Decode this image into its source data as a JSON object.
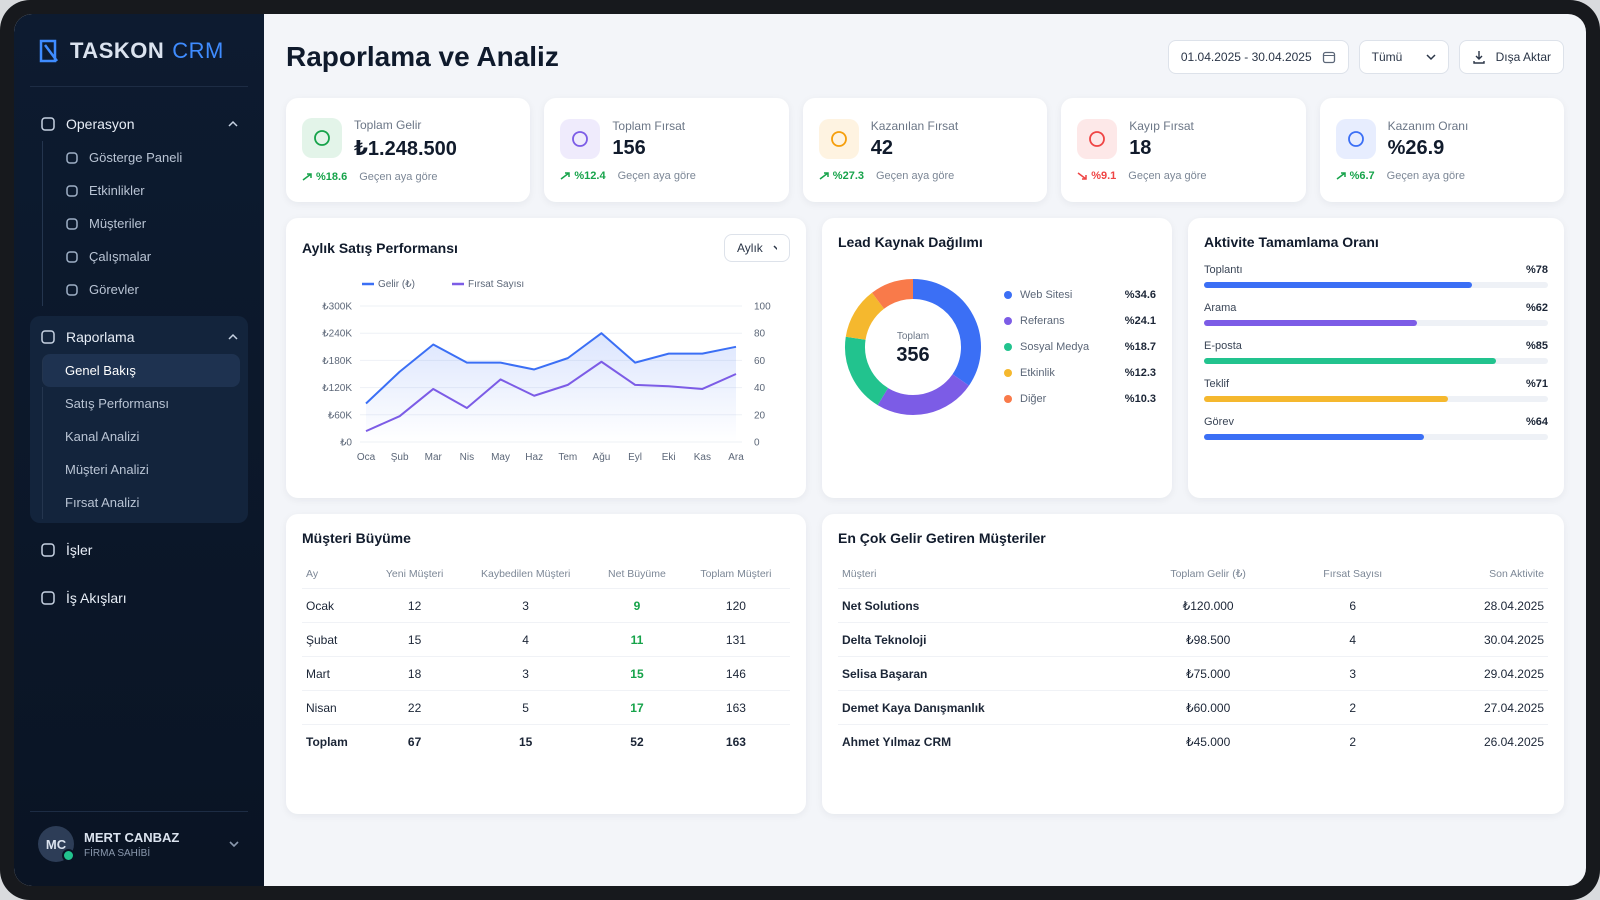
{
  "sidebar": {
    "brand": "TASKON",
    "brand_accent": "CRM",
    "menu": [
      {
        "label": "Operasyon",
        "items": [
          "Gösterge Paneli",
          "Etkinlikler",
          "Müşteriler",
          "Çalışmalar",
          "Görevler"
        ]
      },
      {
        "label": "Raporlama",
        "items": [
          "Genel Bakış",
          "Satış Performansı",
          "Kanal Analizi",
          "Müşteri Analizi",
          "Fırsat Analizi"
        ]
      },
      {
        "label": "İşler"
      },
      {
        "label": "İş Akışları"
      }
    ],
    "user": {
      "initials": "MC",
      "name": "MERT CANBAZ",
      "role": "FİRMA SAHİBİ"
    }
  },
  "header": {
    "title": "Raporlama ve Analiz",
    "date_range": "01.04.2025 - 30.04.2025",
    "filter": "Tümü",
    "export": "Dışa Aktar"
  },
  "kpis": [
    {
      "label": "Toplam Gelir",
      "value": "₺1.248.500",
      "change": "%18.6",
      "note": "Geçen aya göre",
      "trend": "up",
      "color": "#16a34a"
    },
    {
      "label": "Toplam Fırsat",
      "value": "156",
      "change": "%12.4",
      "note": "Geçen aya göre",
      "trend": "up",
      "color": "#7c5ce6"
    },
    {
      "label": "Kazanılan Fırsat",
      "value": "42",
      "change": "%27.3",
      "note": "Geçen aya göre",
      "trend": "up",
      "color": "#f59e0b"
    },
    {
      "label": "Kayıp Fırsat",
      "value": "18",
      "change": "%9.1",
      "note": "Geçen aya göre",
      "trend": "down",
      "color": "#ef4444"
    },
    {
      "label": "Kazanım Oranı",
      "value": "%26.9",
      "change": "%6.7",
      "note": "Geçen aya göre",
      "trend": "up",
      "color": "#3b6ff5"
    }
  ],
  "chart_data": [
    {
      "type": "line",
      "title": "Aylık Satış Performansı",
      "control": "Aylık",
      "categories": [
        "Oca",
        "Şub",
        "Mar",
        "Nis",
        "May",
        "Haz",
        "Tem",
        "Ağu",
        "Eyl",
        "Eki",
        "Kas",
        "Ara"
      ],
      "series": [
        {
          "name": "Gelir (₺)",
          "color": "#3b6ff5",
          "values": [
            85000,
            155000,
            215000,
            175000,
            175000,
            160000,
            185000,
            240000,
            175000,
            195000,
            195000,
            210000
          ]
        },
        {
          "name": "Fırsat Sayısı",
          "color": "#7c5ce6",
          "axis": "y2",
          "values": [
            8,
            19,
            39,
            25,
            46,
            34,
            42,
            59,
            42,
            41,
            39,
            50
          ]
        }
      ],
      "ylim": [
        0,
        300000
      ],
      "yticks": [
        {
          "value": 0,
          "label": "₺0"
        },
        {
          "value": 60000,
          "label": "₺60K"
        },
        {
          "value": 120000,
          "label": "₺120K"
        },
        {
          "value": 180000,
          "label": "₺180K"
        },
        {
          "value": 240000,
          "label": "₺240K"
        },
        {
          "value": 300000,
          "label": "₺300K"
        }
      ],
      "y2lim": [
        0,
        100
      ],
      "y2ticks": [
        0,
        20,
        40,
        60,
        80,
        100
      ],
      "grid": true
    },
    {
      "type": "pie",
      "title": "Lead Kaynak Dağılımı",
      "center_label": "Toplam",
      "center_value": 356,
      "categories": [
        "Web Sitesi",
        "Referans",
        "Sosyal Medya",
        "Etkinlik",
        "Diğer"
      ],
      "values": [
        34.6,
        24.1,
        18.7,
        12.3,
        10.3
      ],
      "value_labels": [
        "%34.6",
        "%24.1",
        "%18.7",
        "%12.3",
        "%10.3"
      ],
      "colors": [
        "#3b6ff5",
        "#7c5ce6",
        "#22c38e",
        "#f5b82e",
        "#f97a4a"
      ]
    },
    {
      "type": "bar",
      "title": "Aktivite Tamamlama Oranı",
      "categories": [
        "Toplantı",
        "Arama",
        "E-posta",
        "Teklif",
        "Görev"
      ],
      "values": [
        78,
        62,
        85,
        71,
        64
      ],
      "value_labels": [
        "%78",
        "%62",
        "%85",
        "%71",
        "%64"
      ],
      "colors": [
        "#3b6ff5",
        "#7c5ce6",
        "#22c38e",
        "#f5b82e",
        "#3b6ff5"
      ],
      "xlim": [
        0,
        100
      ]
    }
  ],
  "growth_table": {
    "title": "Müşteri Büyüme",
    "columns": [
      "Ay",
      "Yeni Müşteri",
      "Kaybedilen Müşteri",
      "Net Büyüme",
      "Toplam Müşteri"
    ],
    "rows": [
      [
        "Ocak",
        12,
        3,
        9,
        120
      ],
      [
        "Şubat",
        15,
        4,
        11,
        131
      ],
      [
        "Mart",
        18,
        3,
        15,
        146
      ],
      [
        "Nisan",
        22,
        5,
        17,
        163
      ],
      [
        "Toplam",
        67,
        15,
        52,
        163
      ]
    ]
  },
  "top_customers": {
    "title": "En Çok Gelir Getiren Müşteriler",
    "columns": [
      "Müşteri",
      "Toplam Gelir (₺)",
      "Fırsat Sayısı",
      "Son Aktivite"
    ],
    "rows": [
      [
        "Net Solutions",
        "₺120.000",
        6,
        "28.04.2025"
      ],
      [
        "Delta Teknoloji",
        "₺98.500",
        4,
        "30.04.2025"
      ],
      [
        "Selisa Başaran",
        "₺75.000",
        3,
        "29.04.2025"
      ],
      [
        "Demet Kaya Danışmanlık",
        "₺60.000",
        2,
        "27.04.2025"
      ],
      [
        "Ahmet Yılmaz CRM",
        "₺45.000",
        2,
        "26.04.2025"
      ]
    ]
  }
}
